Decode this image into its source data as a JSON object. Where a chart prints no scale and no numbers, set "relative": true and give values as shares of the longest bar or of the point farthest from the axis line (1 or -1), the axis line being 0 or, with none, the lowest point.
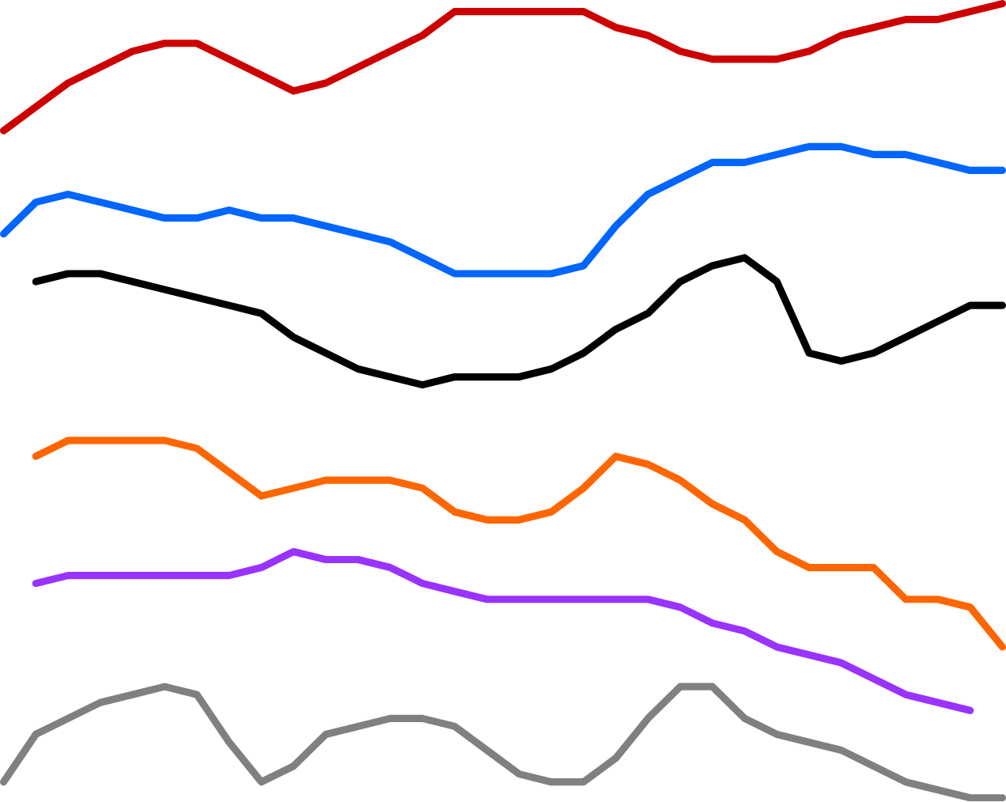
{
  "chart_data": {
    "type": "line",
    "relative": true,
    "categories": [
      null,
      null,
      null,
      null,
      null,
      null,
      null,
      null,
      null,
      null,
      null,
      null,
      null,
      null,
      null,
      null,
      null,
      null,
      null,
      null,
      null,
      null,
      null,
      null,
      null,
      null,
      null,
      null,
      null,
      null,
      null,
      null
    ],
    "series": [
      {
        "color": "#cc0000",
        "values": [
          0.84,
          0.87,
          0.9,
          0.92,
          0.94,
          0.95,
          0.95,
          0.93,
          0.91,
          0.89,
          0.9,
          0.92,
          0.94,
          0.96,
          0.99,
          0.99,
          0.99,
          0.99,
          0.99,
          0.97,
          0.96,
          0.94,
          0.93,
          0.93,
          0.93,
          0.94,
          0.96,
          0.97,
          0.98,
          0.98,
          0.99,
          1
        ]
      },
      {
        "color": "#0066ff",
        "values": [
          0.71,
          0.75,
          0.76,
          0.75,
          0.74,
          0.73,
          0.73,
          0.74,
          0.73,
          0.73,
          0.72,
          0.71,
          0.7,
          0.68,
          0.66,
          0.66,
          0.66,
          0.66,
          0.67,
          0.72,
          0.76,
          0.78,
          0.8,
          0.8,
          0.81,
          0.82,
          0.82,
          0.81,
          0.81,
          0.8,
          0.79,
          0.79
        ]
      },
      {
        "color": "#000000",
        "values": [
          null,
          0.65,
          0.66,
          0.66,
          0.65,
          0.64,
          0.63,
          0.62,
          0.61,
          0.58,
          0.56,
          0.54,
          0.53,
          0.52,
          0.53,
          0.53,
          0.53,
          0.54,
          0.56,
          0.59,
          0.61,
          0.65,
          0.67,
          0.68,
          0.65,
          0.56,
          0.55,
          0.56,
          0.58,
          0.6,
          0.62,
          0.62
        ]
      },
      {
        "color": "#ff6600",
        "values": [
          null,
          0.43,
          0.45,
          0.45,
          0.45,
          0.45,
          0.44,
          0.41,
          0.38,
          0.39,
          0.4,
          0.4,
          0.4,
          0.39,
          0.36,
          0.35,
          0.35,
          0.36,
          0.39,
          0.43,
          0.42,
          0.4,
          0.37,
          0.35,
          0.31,
          0.29,
          0.29,
          0.29,
          0.25,
          0.25,
          0.24,
          0.19
        ]
      },
      {
        "color": "#9933ff",
        "values": [
          null,
          0.27,
          0.28,
          0.28,
          0.28,
          0.28,
          0.28,
          0.28,
          0.29,
          0.31,
          0.3,
          0.3,
          0.29,
          0.27,
          0.26,
          0.25,
          0.25,
          0.25,
          0.25,
          0.25,
          0.25,
          0.24,
          0.22,
          0.21,
          0.19,
          0.18,
          0.17,
          0.15,
          0.13,
          0.12,
          0.11,
          null
        ]
      },
      {
        "color": "#808080",
        "values": [
          0.02,
          0.08,
          0.1,
          0.12,
          0.13,
          0.14,
          0.13,
          0.07,
          0.02,
          0.04,
          0.08,
          0.09,
          0.1,
          0.1,
          0.09,
          0.06,
          0.03,
          0.02,
          0.02,
          0.05,
          0.1,
          0.14,
          0.14,
          0.1,
          0.08,
          0.07,
          0.06,
          0.04,
          0.02,
          0.01,
          0,
          0
        ]
      }
    ]
  }
}
